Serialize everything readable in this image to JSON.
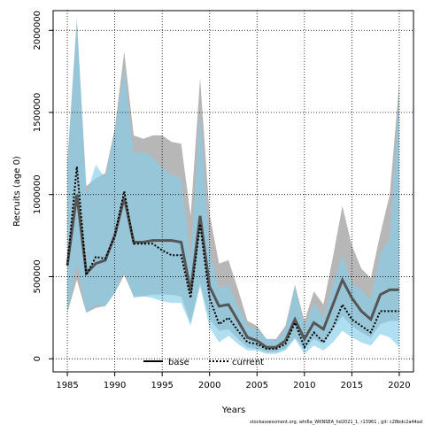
{
  "chart_data": {
    "type": "line",
    "title": "",
    "xlabel": "Years",
    "ylabel": "Recruits (age 0)",
    "xlim": [
      1983.5,
      2021.5
    ],
    "ylim": [
      -80000,
      2120000
    ],
    "x_ticks": [
      1985,
      1990,
      1995,
      2000,
      2005,
      2010,
      2015,
      2020
    ],
    "x_tick_labels": [
      "1985",
      "1990",
      "1995",
      "2000",
      "2005",
      "2010",
      "2015",
      "2020"
    ],
    "y_ticks": [
      0,
      500000,
      1000000,
      1500000,
      2000000
    ],
    "y_tick_labels": [
      "0",
      "500000",
      "1000000",
      "1500000",
      "2000000"
    ],
    "grid": true,
    "legend_position": "bottom-center",
    "years": [
      1985,
      1986,
      1987,
      1988,
      1989,
      1990,
      1991,
      1992,
      1993,
      1994,
      1995,
      1996,
      1997,
      1998,
      1999,
      2000,
      2001,
      2002,
      2003,
      2004,
      2005,
      2006,
      2007,
      2008,
      2009,
      2010,
      2011,
      2012,
      2013,
      2014,
      2015,
      2016,
      2017,
      2018,
      2019,
      2020
    ],
    "series": [
      {
        "name": "base",
        "color": "#000000",
        "fill": "#aaaaaa",
        "values": [
          570000,
          1000000,
          520000,
          580000,
          600000,
          750000,
          980000,
          710000,
          710000,
          720000,
          720000,
          720000,
          710000,
          410000,
          870000,
          440000,
          320000,
          330000,
          230000,
          130000,
          110000,
          70000,
          70000,
          110000,
          240000,
          120000,
          220000,
          180000,
          330000,
          480000,
          370000,
          290000,
          240000,
          390000,
          420000,
          420000
        ],
        "lower": [
          280000,
          480000,
          280000,
          310000,
          320000,
          400000,
          510000,
          380000,
          380000,
          390000,
          390000,
          390000,
          380000,
          220000,
          460000,
          240000,
          170000,
          180000,
          120000,
          70000,
          60000,
          40000,
          40000,
          60000,
          130000,
          60000,
          120000,
          90000,
          180000,
          260000,
          200000,
          160000,
          130000,
          210000,
          230000,
          230000
        ],
        "upper": [
          1200000,
          2060000,
          1050000,
          1100000,
          1130000,
          1400000,
          1870000,
          1360000,
          1340000,
          1360000,
          1360000,
          1320000,
          1310000,
          870000,
          1710000,
          880000,
          580000,
          600000,
          420000,
          230000,
          200000,
          120000,
          120000,
          200000,
          450000,
          230000,
          410000,
          330000,
          620000,
          930000,
          690000,
          550000,
          490000,
          760000,
          1000000,
          1680000
        ]
      },
      {
        "name": "current",
        "color": "#000000",
        "fill": "#87ceeb",
        "values": [
          570000,
          1170000,
          510000,
          620000,
          610000,
          750000,
          1020000,
          700000,
          700000,
          700000,
          660000,
          630000,
          630000,
          370000,
          820000,
          370000,
          210000,
          250000,
          170000,
          100000,
          90000,
          60000,
          60000,
          90000,
          220000,
          70000,
          160000,
          100000,
          190000,
          330000,
          240000,
          200000,
          160000,
          290000,
          290000,
          290000
        ],
        "lower": [
          280000,
          580000,
          280000,
          330000,
          320000,
          400000,
          530000,
          370000,
          380000,
          370000,
          350000,
          340000,
          340000,
          200000,
          440000,
          190000,
          100000,
          140000,
          90000,
          50000,
          50000,
          30000,
          30000,
          50000,
          120000,
          30000,
          80000,
          50000,
          100000,
          170000,
          130000,
          100000,
          80000,
          150000,
          130000,
          70000
        ],
        "upper": [
          1180000,
          2080000,
          1000000,
          1180000,
          1100000,
          1380000,
          1770000,
          1250000,
          1260000,
          1230000,
          1160000,
          1120000,
          1100000,
          620000,
          1500000,
          660000,
          430000,
          450000,
          320000,
          200000,
          180000,
          120000,
          110000,
          180000,
          440000,
          200000,
          340000,
          250000,
          450000,
          630000,
          460000,
          420000,
          360000,
          640000,
          730000,
          1600000
        ]
      }
    ]
  },
  "footer": "stockassessment.org, whi6a_WKNSEA_hd2021_1, r13961 , git: c28bdc2a44ad"
}
